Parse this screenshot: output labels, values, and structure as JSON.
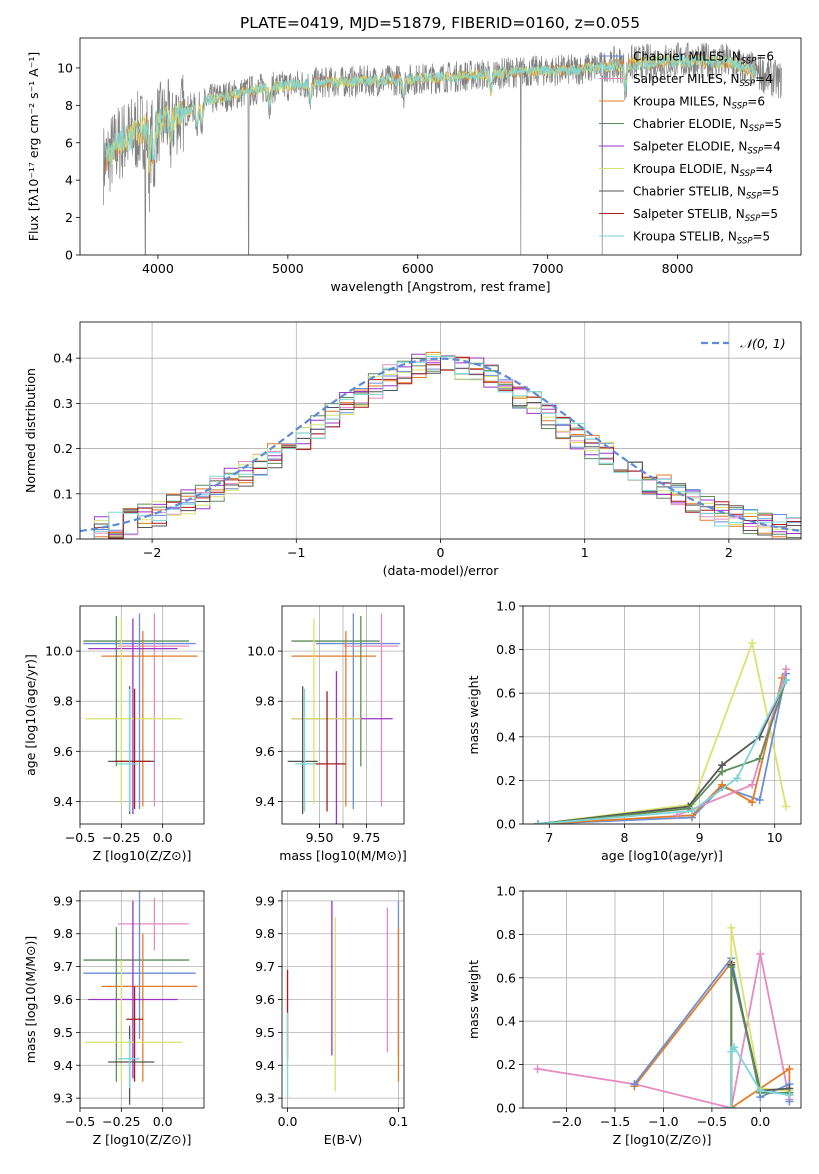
{
  "title": "PLATE=0419, MJD=51879, FIBERID=0160, z=0.055",
  "colors": {
    "Chabrier MILES": "#6a8fd8",
    "Salpeter MILES": "#e58ac3",
    "Kroupa MILES": "#e37d2a",
    "Chabrier ELODIE": "#5e8d5a",
    "Salpeter ELODIE": "#9b35c9",
    "Kroupa ELODIE": "#d8e36e",
    "Chabrier STELIB": "#555555",
    "Salpeter STELIB": "#a51d1d",
    "Kroupa STELIB": "#7dd6d8"
  },
  "legend": [
    {
      "key": "Chabrier MILES",
      "base": "Chabrier MILES, N",
      "sub": "SSP",
      "tail": "=6"
    },
    {
      "key": "Salpeter MILES",
      "base": "Salpeter MILES, N",
      "sub": "SSP",
      "tail": "=4"
    },
    {
      "key": "Kroupa MILES",
      "base": "Kroupa MILES, N",
      "sub": "SSP",
      "tail": "=6"
    },
    {
      "key": "Chabrier ELODIE",
      "base": "Chabrier ELODIE, N",
      "sub": "SSP",
      "tail": "=5"
    },
    {
      "key": "Salpeter ELODIE",
      "base": "Salpeter ELODIE, N",
      "sub": "SSP",
      "tail": "=4"
    },
    {
      "key": "Kroupa ELODIE",
      "base": "Kroupa ELODIE, N",
      "sub": "SSP",
      "tail": "=4"
    },
    {
      "key": "Chabrier STELIB",
      "base": "Chabrier STELIB, N",
      "sub": "SSP",
      "tail": "=5"
    },
    {
      "key": "Salpeter STELIB",
      "base": "Salpeter STELIB, N",
      "sub": "SSP",
      "tail": "=5"
    },
    {
      "key": "Kroupa STELIB",
      "base": "Kroupa STELIB, N",
      "sub": "SSP",
      "tail": "=5"
    }
  ],
  "chart_data": [
    {
      "type": "line",
      "panel": "spectrum",
      "xlabel": "wavelength [Angstrom, rest frame]",
      "ylabel": "Flux [fλ10⁻¹⁷ erg cm⁻² s⁻¹ A⁻¹]",
      "xlim": [
        3400,
        8950
      ],
      "ylim": [
        0,
        11.6
      ],
      "xticks": [
        4000,
        5000,
        6000,
        7000,
        8000
      ],
      "yticks": [
        0,
        2,
        4,
        6,
        8,
        10
      ],
      "continuum": {
        "x": [
          3550,
          3700,
          3900,
          4100,
          4400,
          4800,
          5200,
          5600,
          6000,
          6400,
          6800,
          7200,
          7600,
          8000,
          8400,
          8800
        ],
        "y": [
          4.6,
          6.0,
          6.8,
          7.3,
          8.3,
          8.9,
          9.2,
          9.3,
          9.4,
          9.6,
          9.8,
          9.9,
          10.2,
          10.4,
          10.3,
          9.3
        ]
      }
    },
    {
      "type": "line",
      "panel": "residual-histogram",
      "xlabel": "(data-model)/error",
      "ylabel": "Normed distribution",
      "xlim": [
        -2.5,
        2.5
      ],
      "ylim": [
        0,
        0.48
      ],
      "xticks": [
        -2,
        -1,
        0,
        1,
        2
      ],
      "yticks": [
        0.0,
        0.1,
        0.2,
        0.3,
        0.4
      ],
      "gaussian_label": "𝒩(0, 1)"
    },
    {
      "type": "scatter",
      "panel": "age-vs-Z",
      "xlabel": "Z [log10(Z/Z⊙)]",
      "ylabel": "age [log10(age/yr)]",
      "xlim": [
        -0.5,
        0.25
      ],
      "ylim": [
        9.31,
        10.18
      ],
      "xticks": [
        -0.5,
        -0.25,
        0.0
      ],
      "xticklabels": [
        "−0.5",
        "−0.25",
        "0.0"
      ],
      "yticks": [
        9.4,
        9.6,
        9.8,
        10.0
      ],
      "points": [
        {
          "s": "Chabrier MILES",
          "x": -0.14,
          "xe": [
            0.34,
            0.34
          ],
          "y": 10.03,
          "ye": [
            0.66,
            0.12
          ]
        },
        {
          "s": "Salpeter MILES",
          "x": -0.05,
          "xe": [
            0.22,
            0.21
          ],
          "y": 10.02,
          "ye": [
            0.64,
            0.13
          ]
        },
        {
          "s": "Kroupa MILES",
          "x": -0.12,
          "xe": [
            0.25,
            0.33
          ],
          "y": 9.98,
          "ye": [
            0.6,
            0.1
          ]
        },
        {
          "s": "Chabrier ELODIE",
          "x": -0.28,
          "xe": [
            0.2,
            0.44
          ],
          "y": 10.04,
          "ye": [
            0.5,
            0.1
          ]
        },
        {
          "s": "Salpeter ELODIE",
          "x": -0.18,
          "xe": [
            0.27,
            0.27
          ],
          "y": 10.01,
          "ye": [
            0.66,
            0.12
          ]
        },
        {
          "s": "Kroupa ELODIE",
          "x": -0.25,
          "xe": [
            0.22,
            0.37
          ],
          "y": 9.73,
          "ye": [
            0.34,
            0.4
          ]
        },
        {
          "s": "Chabrier STELIB",
          "x": -0.2,
          "xe": [
            0.13,
            0.15
          ],
          "y": 9.56,
          "ye": [
            0.21,
            0.3
          ]
        },
        {
          "s": "Salpeter STELIB",
          "x": -0.17,
          "xe": [
            0.12,
            0.1
          ],
          "y": 9.56,
          "ye": [
            0.19,
            0.29
          ]
        },
        {
          "s": "Kroupa STELIB",
          "x": -0.2,
          "xe": [
            0.08,
            0.05
          ],
          "y": 9.55,
          "ye": [
            0.19,
            0.3
          ]
        }
      ]
    },
    {
      "type": "scatter",
      "panel": "age-vs-mass",
      "xlabel": "mass [log10(M/M⊙)]",
      "ylabel": "",
      "xlim": [
        9.3,
        9.95
      ],
      "ylim": [
        9.31,
        10.18
      ],
      "xticks": [
        9.5,
        9.625,
        9.75
      ],
      "xticklabels": [
        "9.50",
        "",
        "9.75"
      ],
      "yticks": [
        9.4,
        9.6,
        9.8,
        10.0
      ],
      "points": [
        {
          "s": "Chabrier MILES",
          "x": 9.68,
          "xe": [
            0.2,
            0.25
          ],
          "y": 10.03,
          "ye": [
            0.66,
            0.12
          ]
        },
        {
          "s": "Salpeter MILES",
          "x": 9.83,
          "xe": [
            0.2,
            0.09
          ],
          "y": 10.02,
          "ye": [
            0.64,
            0.13
          ]
        },
        {
          "s": "Kroupa MILES",
          "x": 9.64,
          "xe": [
            0.29,
            0.16
          ],
          "y": 9.98,
          "ye": [
            0.6,
            0.1
          ]
        },
        {
          "s": "Chabrier ELODIE",
          "x": 9.72,
          "xe": [
            0.37,
            0.1
          ],
          "y": 10.04,
          "ye": [
            0.5,
            0.1
          ]
        },
        {
          "s": "Salpeter ELODIE",
          "x": 9.59,
          "xe": [
            0.24,
            0.3
          ],
          "y": 9.73,
          "ye": [
            0.68,
            0.19
          ]
        },
        {
          "s": "Kroupa ELODIE",
          "x": 9.47,
          "xe": [
            0.12,
            0.25
          ],
          "y": 9.73,
          "ye": [
            0.34,
            0.4
          ]
        },
        {
          "s": "Chabrier STELIB",
          "x": 9.41,
          "xe": [
            0.08,
            0.08
          ],
          "y": 9.56,
          "ye": [
            0.21,
            0.3
          ]
        },
        {
          "s": "Salpeter STELIB",
          "x": 9.54,
          "xe": [
            0.07,
            0.1
          ],
          "y": 9.55,
          "ye": [
            0.19,
            0.29
          ]
        },
        {
          "s": "Kroupa STELIB",
          "x": 9.42,
          "xe": [
            0.05,
            0.06
          ],
          "y": 9.55,
          "ye": [
            0.19,
            0.3
          ]
        }
      ]
    },
    {
      "type": "line",
      "panel": "mass-weight-vs-age",
      "xlabel": "age [log10(age/yr)]",
      "ylabel": "mass weight",
      "xlim": [
        6.65,
        10.35
      ],
      "ylim": [
        0,
        1.0
      ],
      "xticks": [
        7,
        8,
        9,
        10
      ],
      "yticks": [
        0.0,
        0.2,
        0.4,
        0.6,
        0.8,
        1.0
      ],
      "series": [
        {
          "s": "Kroupa ELODIE",
          "x": [
            6.85,
            8.9,
            9.7,
            10.15
          ],
          "y": [
            0.0,
            0.09,
            0.83,
            0.08
          ]
        },
        {
          "s": "Chabrier MILES",
          "x": [
            6.85,
            8.9,
            9.3,
            9.8,
            10.15
          ],
          "y": [
            0.0,
            0.03,
            0.17,
            0.11,
            0.69
          ]
        },
        {
          "s": "Kroupa MILES",
          "x": [
            6.85,
            8.9,
            9.3,
            9.7,
            10.1
          ],
          "y": [
            0.0,
            0.04,
            0.18,
            0.1,
            0.67
          ]
        },
        {
          "s": "Salpeter MILES",
          "x": [
            8.7,
            9.7,
            10.15
          ],
          "y": [
            0.04,
            0.18,
            0.71
          ]
        },
        {
          "s": "Chabrier STELIB",
          "x": [
            6.85,
            8.85,
            9.3,
            9.8,
            10.15
          ],
          "y": [
            0.0,
            0.08,
            0.27,
            0.4,
            0.66
          ]
        },
        {
          "s": "Chabrier ELODIE",
          "x": [
            6.85,
            8.85,
            9.3,
            9.8,
            10.15
          ],
          "y": [
            0.0,
            0.07,
            0.24,
            0.3,
            0.66
          ]
        },
        {
          "s": "Kroupa STELIB",
          "x": [
            6.85,
            8.9,
            9.5,
            10.15
          ],
          "y": [
            0.0,
            0.06,
            0.21,
            0.66
          ]
        }
      ]
    },
    {
      "type": "scatter",
      "panel": "mass-vs-Z",
      "xlabel": "Z [log10(Z/Z⊙)]",
      "ylabel": "mass [log10(M/M⊙)]",
      "xlim": [
        -0.5,
        0.25
      ],
      "ylim": [
        9.27,
        9.93
      ],
      "xticks": [
        -0.5,
        -0.25,
        0.0
      ],
      "xticklabels": [
        "−0.5",
        "−0.25",
        "0.0"
      ],
      "yticks": [
        9.3,
        9.4,
        9.5,
        9.6,
        9.7,
        9.8,
        9.9
      ],
      "points": [
        {
          "s": "Salpeter MILES",
          "x": -0.05,
          "xe": [
            0.22,
            0.21
          ],
          "y": 9.83,
          "ye": [
            0.08,
            0.08
          ]
        },
        {
          "s": "Chabrier MILES",
          "x": -0.14,
          "xe": [
            0.34,
            0.34
          ],
          "y": 9.68,
          "ye": [
            0.2,
            0.25
          ]
        },
        {
          "s": "Chabrier ELODIE",
          "x": -0.28,
          "xe": [
            0.2,
            0.44
          ],
          "y": 9.72,
          "ye": [
            0.37,
            0.1
          ]
        },
        {
          "s": "Kroupa MILES",
          "x": -0.12,
          "xe": [
            0.25,
            0.33
          ],
          "y": 9.64,
          "ye": [
            0.29,
            0.16
          ]
        },
        {
          "s": "Salpeter ELODIE",
          "x": -0.18,
          "xe": [
            0.27,
            0.27
          ],
          "y": 9.6,
          "ye": [
            0.24,
            0.3
          ]
        },
        {
          "s": "Kroupa ELODIE",
          "x": -0.25,
          "xe": [
            0.22,
            0.37
          ],
          "y": 9.47,
          "ye": [
            0.12,
            0.25
          ]
        },
        {
          "s": "Salpeter STELIB",
          "x": -0.17,
          "xe": [
            0.05,
            0.05
          ],
          "y": 9.54,
          "ye": [
            0.19,
            0.1
          ]
        },
        {
          "s": "Chabrier STELIB",
          "x": -0.2,
          "xe": [
            0.13,
            0.15
          ],
          "y": 9.41,
          "ye": [
            0.13,
            0.11
          ]
        },
        {
          "s": "Kroupa STELIB",
          "x": -0.2,
          "xe": [
            0.07,
            0.06
          ],
          "y": 9.42,
          "ye": [
            0.09,
            0.06
          ]
        }
      ]
    },
    {
      "type": "scatter",
      "panel": "mass-vs-EBV",
      "xlabel": "E(B-V)",
      "ylabel": "",
      "xlim": [
        -0.005,
        0.105
      ],
      "ylim": [
        9.27,
        9.93
      ],
      "xticks": [
        0.0,
        0.1
      ],
      "xticklabels": [
        "0.0",
        "0.1"
      ],
      "yticks": [
        9.3,
        9.4,
        9.5,
        9.6,
        9.7,
        9.8,
        9.9
      ],
      "points": [
        {
          "s": "Salpeter STELIB",
          "x": 0.0,
          "y": 9.6,
          "ye": [
            0.18,
            0.09
          ]
        },
        {
          "s": "Kroupa STELIB",
          "x": 0.0,
          "y": 9.42,
          "ye": [
            0.12,
            0.14
          ]
        },
        {
          "s": "Salpeter ELODIE",
          "x": 0.04,
          "y": 9.67,
          "ye": [
            0.24,
            0.23
          ]
        },
        {
          "s": "Kroupa ELODIE",
          "x": 0.043,
          "y": 9.6,
          "ye": [
            0.28,
            0.25
          ]
        },
        {
          "s": "Salpeter MILES",
          "x": 0.09,
          "y": 9.66,
          "ye": [
            0.22,
            0.22
          ]
        },
        {
          "s": "Chabrier MILES",
          "x": 0.1,
          "y": 9.68,
          "ye": [
            0.25,
            0.22
          ]
        },
        {
          "s": "Kroupa MILES",
          "x": 0.1,
          "y": 9.58,
          "ye": [
            0.23,
            0.24
          ]
        }
      ]
    },
    {
      "type": "line",
      "panel": "mass-weight-vs-Z",
      "xlabel": "Z [log10(Z/Z⊙)]",
      "ylabel": "mass weight",
      "xlim": [
        -2.45,
        0.42
      ],
      "ylim": [
        0,
        1.0
      ],
      "xticks": [
        -2.0,
        -1.5,
        -1.0,
        -0.5,
        0.0
      ],
      "xticklabels": [
        "−2.0",
        "−1.5",
        "−1.0",
        "−0.5",
        "0.0"
      ],
      "yticks": [
        0.0,
        0.2,
        0.4,
        0.6,
        0.8,
        1.0
      ],
      "series": [
        {
          "s": "Salpeter MILES",
          "x": [
            -2.3,
            -1.3,
            -0.3,
            0.0,
            0.3
          ],
          "y": [
            0.18,
            0.11,
            0.0,
            0.71,
            0.04
          ]
        },
        {
          "s": "Kroupa MILES",
          "x": [
            -1.3,
            -0.3,
            -0.3,
            0.3,
            0.3
          ],
          "y": [
            0.1,
            0.67,
            0.0,
            0.18,
            0.06
          ]
        },
        {
          "s": "Chabrier MILES",
          "x": [
            -1.3,
            -0.3,
            0.0,
            0.3,
            0.3
          ],
          "y": [
            0.11,
            0.69,
            0.05,
            0.11,
            0.03
          ]
        },
        {
          "s": "Kroupa ELODIE",
          "x": [
            -0.3,
            -0.3,
            0.0,
            0.3
          ],
          "y": [
            0.0,
            0.83,
            0.09,
            0.08
          ]
        },
        {
          "s": "Chabrier STELIB",
          "x": [
            -0.3,
            -0.3,
            0.0,
            0.3
          ],
          "y": [
            0.0,
            0.66,
            0.08,
            0.09
          ]
        },
        {
          "s": "Chabrier ELODIE",
          "x": [
            -0.3,
            -0.3,
            0.0,
            0.3
          ],
          "y": [
            0.0,
            0.65,
            0.07,
            0.07
          ]
        },
        {
          "s": "Kroupa STELIB",
          "x": [
            -0.3,
            -0.3,
            -0.27,
            0.0,
            0.3
          ],
          "y": [
            0.0,
            0.26,
            0.28,
            0.08,
            0.06
          ]
        }
      ]
    }
  ]
}
